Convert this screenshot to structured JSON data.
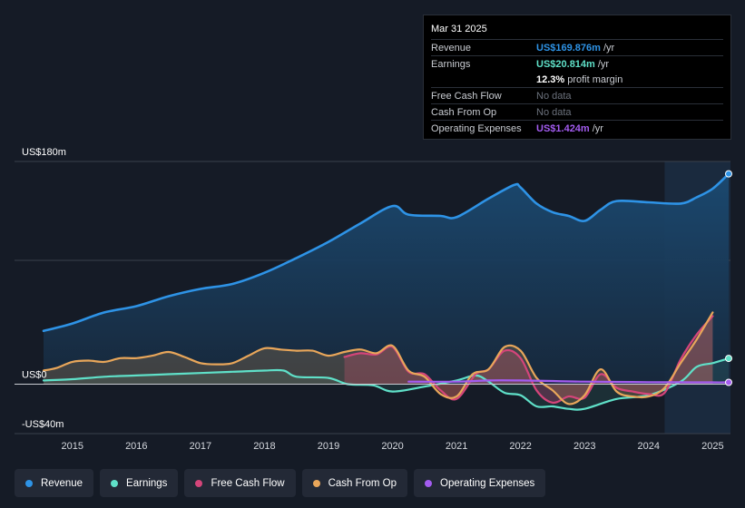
{
  "tooltip": {
    "date": "Mar 31 2025",
    "rows": {
      "revenue": {
        "label": "Revenue",
        "value": "US$169.876m",
        "unit": "/yr",
        "color": "#2e93e6"
      },
      "earnings": {
        "label": "Earnings",
        "value": "US$20.814m",
        "unit": "/yr",
        "color": "#5fe0c8"
      },
      "margin": {
        "value": "12.3%",
        "text": "profit margin"
      },
      "fcf": {
        "label": "Free Cash Flow",
        "value": "No data"
      },
      "cfo": {
        "label": "Cash From Op",
        "value": "No data"
      },
      "opex": {
        "label": "Operating Expenses",
        "value": "US$1.424m",
        "unit": "/yr",
        "color": "#a35cf0"
      }
    }
  },
  "legend": [
    {
      "label": "Revenue",
      "color": "#2e93e6"
    },
    {
      "label": "Earnings",
      "color": "#5fe0c8"
    },
    {
      "label": "Free Cash Flow",
      "color": "#d4457a"
    },
    {
      "label": "Cash From Op",
      "color": "#e8a65a"
    },
    {
      "label": "Operating Expenses",
      "color": "#a35cf0"
    }
  ],
  "chart_data": {
    "type": "area",
    "title": "",
    "xlabel": "",
    "ylabel": "",
    "ylim": [
      -40,
      180
    ],
    "xlim": [
      2014.55,
      2025.25
    ],
    "y_tick_labels": [
      {
        "label": "US$180m",
        "value": 180
      },
      {
        "label": "US$0",
        "value": 0
      },
      {
        "label": "-US$40m",
        "value": -40
      }
    ],
    "x_ticks": [
      2015,
      2016,
      2017,
      2018,
      2019,
      2020,
      2021,
      2022,
      2023,
      2024,
      2025
    ],
    "x_tick_labels": [
      "2015",
      "2016",
      "2017",
      "2018",
      "2019",
      "2020",
      "2021",
      "2022",
      "2023",
      "2024",
      "2025"
    ],
    "shaded_region_start": 2024.25,
    "series": [
      {
        "name": "Revenue",
        "color": "#2e93e6",
        "x": [
          2014.55,
          2015.0,
          2015.5,
          2016.0,
          2016.5,
          2017.0,
          2017.5,
          2018.0,
          2018.5,
          2019.0,
          2019.5,
          2020.0,
          2020.25,
          2020.75,
          2021.0,
          2021.5,
          2021.9,
          2022.0,
          2022.25,
          2022.5,
          2022.75,
          2023.0,
          2023.25,
          2023.5,
          2024.0,
          2024.5,
          2024.75,
          2025.0,
          2025.25
        ],
        "y": [
          43,
          49,
          58,
          63,
          71,
          77,
          81,
          90,
          102,
          115,
          130,
          144,
          137,
          136,
          135,
          150,
          161,
          159,
          146,
          139,
          136,
          132,
          141,
          148,
          147,
          146,
          151,
          158,
          170
        ]
      },
      {
        "name": "Earnings",
        "color": "#5fe0c8",
        "x": [
          2014.55,
          2015.0,
          2015.5,
          2016.0,
          2016.5,
          2017.0,
          2017.5,
          2018.0,
          2018.3,
          2018.5,
          2019.0,
          2019.3,
          2019.7,
          2020.0,
          2020.5,
          2021.0,
          2021.3,
          2021.5,
          2021.75,
          2022.0,
          2022.25,
          2022.5,
          2022.75,
          2023.0,
          2023.5,
          2024.0,
          2024.5,
          2024.75,
          2025.0,
          2025.25
        ],
        "y": [
          3,
          4,
          6,
          7,
          8,
          9,
          10,
          11,
          11,
          6,
          5,
          0,
          -1,
          -6,
          -2,
          3,
          7,
          2,
          -7,
          -9,
          -18,
          -18,
          -20,
          -20,
          -12,
          -9,
          2,
          14,
          17,
          20.8
        ]
      },
      {
        "name": "Free Cash Flow",
        "color": "#d4457a",
        "x": [
          2019.25,
          2019.5,
          2019.75,
          2020.0,
          2020.25,
          2020.5,
          2020.75,
          2021.0,
          2021.3,
          2021.5,
          2021.75,
          2022.0,
          2022.25,
          2022.5,
          2022.75,
          2023.0,
          2023.25,
          2023.5,
          2023.75,
          2024.0,
          2024.25,
          2024.5,
          2024.75,
          2025.0
        ],
        "y": [
          22,
          25,
          24,
          30,
          10,
          8,
          -5,
          -12,
          8,
          12,
          27,
          21,
          -5,
          -15,
          -10,
          -11,
          8,
          -3,
          -6,
          -8,
          -7,
          20,
          40,
          55
        ]
      },
      {
        "name": "Cash From Op",
        "color": "#e8a65a",
        "x": [
          2014.55,
          2014.75,
          2015.0,
          2015.25,
          2015.5,
          2015.75,
          2016.0,
          2016.25,
          2016.5,
          2016.75,
          2017.0,
          2017.25,
          2017.5,
          2017.75,
          2018.0,
          2018.25,
          2018.5,
          2018.75,
          2019.0,
          2019.25,
          2019.5,
          2019.75,
          2020.0,
          2020.25,
          2020.5,
          2020.75,
          2021.0,
          2021.25,
          2021.5,
          2021.75,
          2022.0,
          2022.25,
          2022.5,
          2022.75,
          2023.0,
          2023.25,
          2023.5,
          2023.75,
          2024.0,
          2024.25,
          2024.5,
          2024.75,
          2025.0
        ],
        "y": [
          11,
          13,
          18,
          19,
          18,
          21,
          21,
          23,
          26,
          22,
          17,
          16,
          17,
          23,
          29,
          28,
          27,
          27,
          23,
          26,
          28,
          25,
          31,
          11,
          6,
          -8,
          -10,
          8,
          12,
          30,
          27,
          5,
          -5,
          -16,
          -9,
          12,
          -6,
          -10,
          -10,
          -3,
          17,
          36,
          58
        ]
      },
      {
        "name": "Operating Expenses",
        "color": "#a35cf0",
        "x": [
          2020.25,
          2021.0,
          2021.5,
          2022.0,
          2022.5,
          2023.0,
          2023.5,
          2024.0,
          2024.5,
          2025.0,
          2025.25
        ],
        "y": [
          2,
          2,
          3,
          3,
          2.5,
          2,
          1.8,
          1.6,
          1.5,
          1.4,
          1.424
        ]
      }
    ]
  }
}
